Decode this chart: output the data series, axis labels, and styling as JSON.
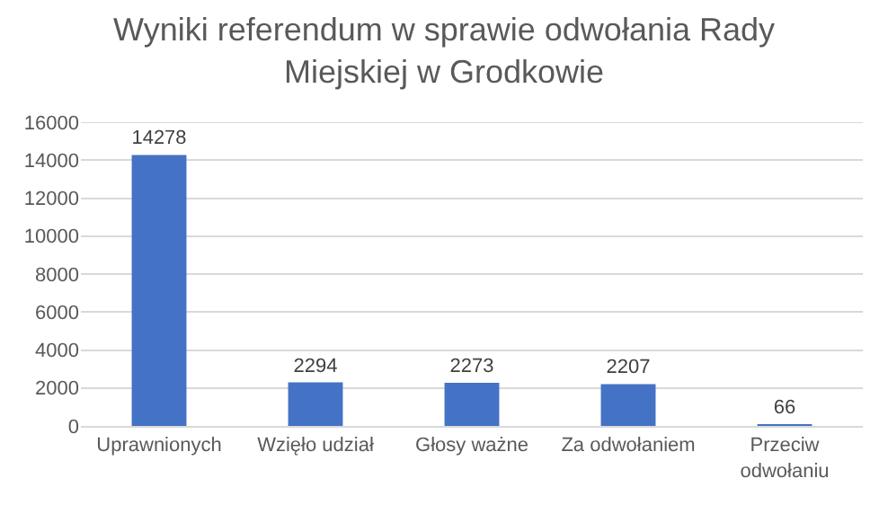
{
  "chart_data": {
    "type": "bar",
    "title": "Wyniki referendum w sprawie odwołania Rady Miejskiej w Grodkowie",
    "categories": [
      "Uprawnionych",
      "Wzięło udział",
      "Głosy ważne",
      "Za odwołaniem",
      "Przeciw odwołaniu"
    ],
    "values": [
      14278,
      2294,
      2273,
      2207,
      66
    ],
    "color": "#4472c4",
    "data_labels": true,
    "ylim": [
      0,
      16000
    ],
    "yticks": [
      0,
      2000,
      4000,
      6000,
      8000,
      10000,
      12000,
      14000,
      16000
    ],
    "grid": "y"
  }
}
